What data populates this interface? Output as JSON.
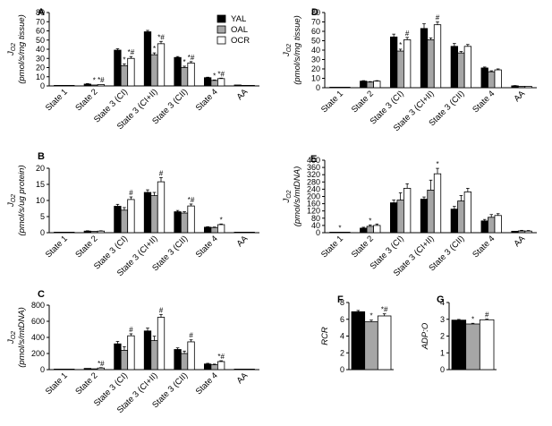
{
  "colors": {
    "YAL": "#000000",
    "OAL": "#a6a6a6",
    "OCR": "#ffffff"
  },
  "legend": {
    "position": "top-right of panel A",
    "items": [
      "YAL",
      "OAL",
      "OCR"
    ]
  },
  "chart_data": [
    {
      "id": "A",
      "type": "bar",
      "ylabel": "J_O2 (pmol/s/mg tissue)",
      "ylabel_main": "J",
      "ylabel_sub": "O2",
      "ylabel_unit": "(pmol/s/mg tissue)",
      "ylim": [
        0,
        80
      ],
      "yticks": [
        "0",
        "10",
        "20",
        "30",
        "40",
        "50",
        "60",
        "70",
        "80"
      ],
      "categories": [
        "State 1",
        "State 2",
        "State 3 (CI)",
        "State 3 (CI+II)",
        "State 3 (CII)",
        "State 4",
        "AA"
      ],
      "series": [
        {
          "name": "YAL",
          "values": [
            0.5,
            2,
            39,
            59,
            31,
            9,
            1
          ],
          "errors": [
            0.2,
            0.5,
            1.5,
            1.5,
            1,
            0.5,
            0.2
          ]
        },
        {
          "name": "OAL",
          "values": [
            0.3,
            1,
            22,
            34,
            20,
            6,
            0.5
          ],
          "errors": [
            0.2,
            0.5,
            2,
            2,
            1.5,
            0.5,
            0.2
          ]
        },
        {
          "name": "OCR",
          "values": [
            0.3,
            1.5,
            30,
            46,
            25,
            8,
            0.5
          ],
          "errors": [
            0.2,
            0.5,
            2,
            2.5,
            1.5,
            0.5,
            0.2
          ]
        }
      ],
      "sig": [
        [
          "",
          "",
          ""
        ],
        [
          "",
          "*",
          "*#"
        ],
        [
          "",
          "*",
          "*#"
        ],
        [
          "",
          "*",
          "*#"
        ],
        [
          "",
          "*",
          "*#"
        ],
        [
          "",
          "*",
          "*#"
        ],
        [
          "",
          "",
          ""
        ]
      ]
    },
    {
      "id": "B",
      "type": "bar",
      "ylabel": "J_O2 (pmol/s/ug protein)",
      "ylabel_main": "J",
      "ylabel_sub": "O2",
      "ylabel_unit": "(pmol/s/ug protein)",
      "ylim": [
        0,
        20
      ],
      "yticks": [
        "0",
        "5",
        "10",
        "15",
        "20"
      ],
      "categories": [
        "State 1",
        "State 2",
        "State 3 (CI)",
        "State 3 (CI+II)",
        "State 3 (CII)",
        "State 4",
        "AA"
      ],
      "series": [
        {
          "name": "YAL",
          "values": [
            0.1,
            0.5,
            8.2,
            12.5,
            6.5,
            1.7,
            0.1
          ],
          "errors": [
            0.05,
            0.1,
            0.6,
            0.8,
            0.4,
            0.15,
            0.05
          ]
        },
        {
          "name": "OAL",
          "values": [
            0.05,
            0.4,
            7.0,
            11.5,
            6.1,
            1.6,
            0.05
          ],
          "errors": [
            0.05,
            0.1,
            0.8,
            1.0,
            0.4,
            0.15,
            0.05
          ]
        },
        {
          "name": "OCR",
          "values": [
            0.05,
            0.5,
            10.3,
            15.8,
            8.3,
            2.5,
            0.05
          ],
          "errors": [
            0.05,
            0.1,
            0.8,
            1.3,
            0.6,
            0.2,
            0.05
          ]
        }
      ],
      "sig": [
        [
          "",
          "",
          ""
        ],
        [
          "",
          "",
          ""
        ],
        [
          "",
          "",
          "#"
        ],
        [
          "",
          "",
          "#"
        ],
        [
          "",
          "",
          "*#"
        ],
        [
          "",
          "",
          "*"
        ],
        [
          "",
          "",
          ""
        ]
      ]
    },
    {
      "id": "C",
      "type": "bar",
      "ylabel": "J_O2 (pmol/s/mtDNA)",
      "ylabel_main": "J",
      "ylabel_sub": "O2",
      "ylabel_unit": "(pmol/s/mtDNA)",
      "ylim": [
        0,
        800
      ],
      "yticks": [
        "0",
        "200",
        "400",
        "600",
        "800"
      ],
      "categories": [
        "State 1",
        "State 2",
        "State 3 (CI)",
        "State 3 (CI+II)",
        "State 3 (CII)",
        "State 4",
        "AA"
      ],
      "series": [
        {
          "name": "YAL",
          "values": [
            2,
            15,
            320,
            480,
            250,
            70,
            3
          ],
          "errors": [
            1,
            5,
            30,
            35,
            20,
            8,
            1
          ]
        },
        {
          "name": "OAL",
          "values": [
            1,
            10,
            240,
            360,
            200,
            60,
            2
          ],
          "errors": [
            1,
            5,
            45,
            55,
            30,
            8,
            1
          ]
        },
        {
          "name": "OCR",
          "values": [
            1,
            20,
            420,
            650,
            345,
            100,
            2
          ],
          "errors": [
            1,
            5,
            25,
            35,
            25,
            10,
            1
          ]
        }
      ],
      "sig": [
        [
          "",
          "",
          ""
        ],
        [
          "",
          "",
          "*#"
        ],
        [
          "",
          "",
          "#"
        ],
        [
          "",
          "",
          "#"
        ],
        [
          "",
          "",
          "#"
        ],
        [
          "",
          "",
          "*#"
        ],
        [
          "",
          "",
          ""
        ]
      ]
    },
    {
      "id": "D",
      "type": "bar",
      "ylabel": "J_O2 (pmol/s/mg tissue)",
      "ylabel_main": "J",
      "ylabel_sub": "O2",
      "ylabel_unit": "(pmol/s/mg tissue)",
      "ylim": [
        0,
        80
      ],
      "yticks": [
        "0",
        "10",
        "20",
        "30",
        "40",
        "50",
        "60",
        "70",
        "80"
      ],
      "categories": [
        "State 1",
        "State 2",
        "State 3 (CI)",
        "State 3 (CI+II)",
        "State 3 (CII)",
        "State 4",
        "AA"
      ],
      "series": [
        {
          "name": "YAL",
          "values": [
            0.5,
            7,
            54,
            63,
            44,
            21,
            2
          ],
          "errors": [
            0.2,
            0.5,
            3,
            5,
            3,
            1,
            0.3
          ]
        },
        {
          "name": "OAL",
          "values": [
            0.4,
            6,
            39,
            51,
            37,
            17,
            1.5
          ],
          "errors": [
            0.2,
            0.5,
            2,
            2,
            1.5,
            1,
            0.3
          ]
        },
        {
          "name": "OCR",
          "values": [
            0.5,
            7,
            51,
            67,
            44,
            19,
            1.5
          ],
          "errors": [
            0.2,
            0.5,
            2.5,
            3,
            2,
            1,
            0.3
          ]
        }
      ],
      "sig": [
        [
          "",
          "",
          ""
        ],
        [
          "",
          "",
          ""
        ],
        [
          "",
          "*",
          "#"
        ],
        [
          "",
          "",
          "#"
        ],
        [
          "",
          "",
          ""
        ],
        [
          "",
          "",
          ""
        ],
        [
          "",
          "",
          ""
        ]
      ]
    },
    {
      "id": "E",
      "type": "bar",
      "ylabel": "J_O2 (pmol/s/mtDNA)",
      "ylabel_main": "J",
      "ylabel_sub": "O2",
      "ylabel_unit": "(pmol/s/mtDNA)",
      "ylim": [
        0,
        400
      ],
      "yticks": [
        "0",
        "40",
        "80",
        "120",
        "160",
        "200",
        "240",
        "280",
        "320",
        "360",
        "400"
      ],
      "yticks_shown": [
        "0",
        "40",
        "80",
        "120",
        "160",
        "200",
        "240",
        "280",
        "320",
        "360",
        "400"
      ],
      "categories": [
        "State 1",
        "State 2",
        "State 3 (CI)",
        "State 3 (CI+II)",
        "State 3 (CII)",
        "State 4",
        "AA"
      ],
      "series": [
        {
          "name": "YAL",
          "values": [
            2,
            25,
            165,
            185,
            130,
            65,
            8
          ],
          "errors": [
            1,
            5,
            15,
            12,
            15,
            8,
            2
          ]
        },
        {
          "name": "OAL",
          "values": [
            2,
            35,
            180,
            235,
            175,
            85,
            10
          ],
          "errors": [
            1,
            8,
            40,
            55,
            30,
            15,
            3
          ]
        },
        {
          "name": "OCR",
          "values": [
            3,
            40,
            245,
            325,
            225,
            95,
            9
          ],
          "errors": [
            1,
            8,
            25,
            30,
            20,
            10,
            3
          ]
        }
      ],
      "sig": [
        [
          "",
          "*",
          ""
        ],
        [
          "",
          "*",
          ""
        ],
        [
          "",
          "",
          ""
        ],
        [
          "",
          "",
          "*"
        ],
        [
          "",
          "",
          ""
        ],
        [
          "",
          "",
          ""
        ],
        [
          "",
          "",
          ""
        ]
      ]
    },
    {
      "id": "F",
      "type": "bar",
      "ylabel": "RCR",
      "ylim": [
        0,
        8
      ],
      "yticks": [
        "0",
        "2",
        "4",
        "6",
        "8"
      ],
      "categories": [
        ""
      ],
      "series": [
        {
          "name": "YAL",
          "values": [
            6.9
          ],
          "errors": [
            0.15
          ]
        },
        {
          "name": "OAL",
          "values": [
            5.7
          ],
          "errors": [
            0.2
          ]
        },
        {
          "name": "OCR",
          "values": [
            6.4
          ],
          "errors": [
            0.25
          ]
        }
      ],
      "sig": [
        [
          "",
          "*",
          "*#"
        ]
      ]
    },
    {
      "id": "G",
      "type": "bar",
      "ylabel": "ADP:O",
      "ylim": [
        0,
        4
      ],
      "yticks": [
        "0",
        "1",
        "2",
        "3",
        "4"
      ],
      "categories": [
        ""
      ],
      "series": [
        {
          "name": "YAL",
          "values": [
            2.95
          ],
          "errors": [
            0.04
          ]
        },
        {
          "name": "OAL",
          "values": [
            2.72
          ],
          "errors": [
            0.04
          ]
        },
        {
          "name": "OCR",
          "values": [
            2.97
          ],
          "errors": [
            0.04
          ]
        }
      ],
      "sig": [
        [
          "",
          "*",
          "#"
        ]
      ]
    }
  ]
}
